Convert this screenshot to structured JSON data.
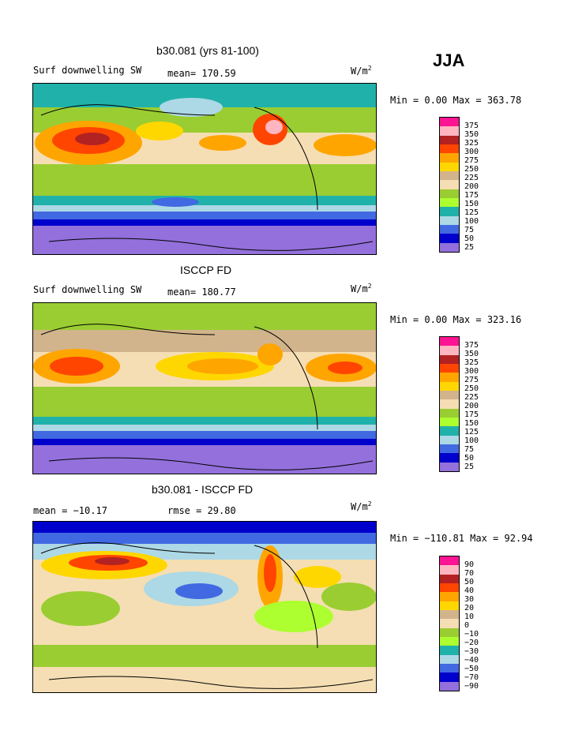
{
  "season": "JJA",
  "panels": [
    {
      "title": "b30.081 (yrs 81-100)",
      "variable": "Surf downwelling SW",
      "stat": "mean= 170.59",
      "units": "W/m",
      "units_exp": "2",
      "minmax": "Min =    0.00 Max = 363.78",
      "levels": [
        "375",
        "350",
        "325",
        "300",
        "275",
        "250",
        "225",
        "200",
        "175",
        "150",
        "125",
        "100",
        "75",
        "50",
        "25"
      ],
      "colors": [
        "#ff1493",
        "#ffb6c1",
        "#b22222",
        "#ff4500",
        "#ffa500",
        "#ffd700",
        "#d2b48c",
        "#f5deb3",
        "#9acd32",
        "#adff2f",
        "#20b2aa",
        "#add8e6",
        "#4169e1",
        "#0000cd",
        "#9370db"
      ]
    },
    {
      "title": "ISCCP FD",
      "variable": "Surf downwelling SW",
      "stat": "mean= 180.77",
      "units": "W/m",
      "units_exp": "2",
      "minmax": "Min =    0.00 Max = 323.16",
      "levels": [
        "375",
        "350",
        "325",
        "300",
        "275",
        "250",
        "225",
        "200",
        "175",
        "150",
        "125",
        "100",
        "75",
        "50",
        "25"
      ],
      "colors": [
        "#ff1493",
        "#ffb6c1",
        "#b22222",
        "#ff4500",
        "#ffa500",
        "#ffd700",
        "#d2b48c",
        "#f5deb3",
        "#9acd32",
        "#adff2f",
        "#20b2aa",
        "#add8e6",
        "#4169e1",
        "#0000cd",
        "#9370db"
      ]
    },
    {
      "title": "b30.081 - ISCCP FD",
      "stat_left": "mean = −10.17",
      "stat": "rmse =  29.80",
      "units": "W/m",
      "units_exp": "2",
      "minmax": "Min = −110.81 Max =  92.94",
      "levels": [
        "90",
        "70",
        "50",
        "40",
        "30",
        "20",
        "10",
        "0",
        "−10",
        "−20",
        "−30",
        "−40",
        "−50",
        "−70",
        "−90"
      ],
      "colors": [
        "#ff1493",
        "#ffb6c1",
        "#b22222",
        "#ff4500",
        "#ffa500",
        "#ffd700",
        "#d2b48c",
        "#f5deb3",
        "#9acd32",
        "#adff2f",
        "#20b2aa",
        "#add8e6",
        "#4169e1",
        "#0000cd",
        "#9370db"
      ]
    }
  ]
}
